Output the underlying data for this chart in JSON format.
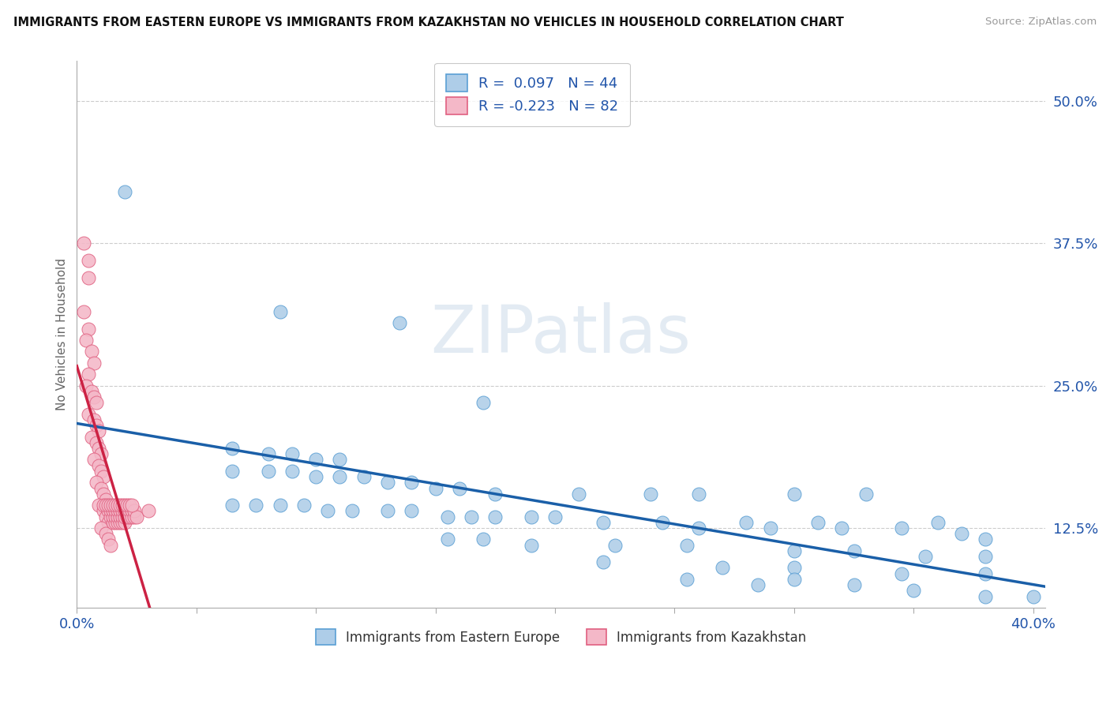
{
  "title": "IMMIGRANTS FROM EASTERN EUROPE VS IMMIGRANTS FROM KAZAKHSTAN NO VEHICLES IN HOUSEHOLD CORRELATION CHART",
  "source": "Source: ZipAtlas.com",
  "ylabel": "No Vehicles in Household",
  "ytick_vals": [
    0.125,
    0.25,
    0.375,
    0.5
  ],
  "ytick_labels": [
    "12.5%",
    "25.0%",
    "37.5%",
    "50.0%"
  ],
  "xlim": [
    0.0,
    0.405
  ],
  "ylim": [
    0.055,
    0.535
  ],
  "blue_color": "#aecde8",
  "pink_color": "#f4b8c8",
  "blue_edge_color": "#5a9fd4",
  "pink_edge_color": "#e06080",
  "blue_line_color": "#1a5fa8",
  "pink_line_color": "#cc2244",
  "blue_scatter": [
    [
      0.02,
      0.42
    ],
    [
      0.085,
      0.315
    ],
    [
      0.135,
      0.305
    ],
    [
      0.17,
      0.235
    ],
    [
      0.065,
      0.195
    ],
    [
      0.08,
      0.19
    ],
    [
      0.09,
      0.19
    ],
    [
      0.1,
      0.185
    ],
    [
      0.11,
      0.185
    ],
    [
      0.065,
      0.175
    ],
    [
      0.08,
      0.175
    ],
    [
      0.09,
      0.175
    ],
    [
      0.1,
      0.17
    ],
    [
      0.11,
      0.17
    ],
    [
      0.12,
      0.17
    ],
    [
      0.13,
      0.165
    ],
    [
      0.14,
      0.165
    ],
    [
      0.15,
      0.16
    ],
    [
      0.16,
      0.16
    ],
    [
      0.175,
      0.155
    ],
    [
      0.21,
      0.155
    ],
    [
      0.24,
      0.155
    ],
    [
      0.26,
      0.155
    ],
    [
      0.3,
      0.155
    ],
    [
      0.33,
      0.155
    ],
    [
      0.065,
      0.145
    ],
    [
      0.075,
      0.145
    ],
    [
      0.085,
      0.145
    ],
    [
      0.095,
      0.145
    ],
    [
      0.105,
      0.14
    ],
    [
      0.115,
      0.14
    ],
    [
      0.13,
      0.14
    ],
    [
      0.14,
      0.14
    ],
    [
      0.155,
      0.135
    ],
    [
      0.165,
      0.135
    ],
    [
      0.175,
      0.135
    ],
    [
      0.19,
      0.135
    ],
    [
      0.2,
      0.135
    ],
    [
      0.22,
      0.13
    ],
    [
      0.245,
      0.13
    ],
    [
      0.28,
      0.13
    ],
    [
      0.31,
      0.13
    ],
    [
      0.36,
      0.13
    ],
    [
      0.26,
      0.125
    ],
    [
      0.29,
      0.125
    ],
    [
      0.32,
      0.125
    ],
    [
      0.345,
      0.125
    ],
    [
      0.37,
      0.12
    ],
    [
      0.38,
      0.115
    ],
    [
      0.155,
      0.115
    ],
    [
      0.17,
      0.115
    ],
    [
      0.19,
      0.11
    ],
    [
      0.225,
      0.11
    ],
    [
      0.255,
      0.11
    ],
    [
      0.3,
      0.105
    ],
    [
      0.325,
      0.105
    ],
    [
      0.355,
      0.1
    ],
    [
      0.38,
      0.1
    ],
    [
      0.22,
      0.095
    ],
    [
      0.27,
      0.09
    ],
    [
      0.3,
      0.09
    ],
    [
      0.345,
      0.085
    ],
    [
      0.38,
      0.085
    ],
    [
      0.255,
      0.08
    ],
    [
      0.3,
      0.08
    ],
    [
      0.285,
      0.075
    ],
    [
      0.325,
      0.075
    ],
    [
      0.35,
      0.07
    ],
    [
      0.38,
      0.065
    ],
    [
      0.4,
      0.065
    ]
  ],
  "pink_scatter": [
    [
      0.003,
      0.375
    ],
    [
      0.005,
      0.36
    ],
    [
      0.005,
      0.345
    ],
    [
      0.003,
      0.315
    ],
    [
      0.005,
      0.3
    ],
    [
      0.004,
      0.29
    ],
    [
      0.006,
      0.28
    ],
    [
      0.007,
      0.27
    ],
    [
      0.005,
      0.26
    ],
    [
      0.004,
      0.25
    ],
    [
      0.006,
      0.245
    ],
    [
      0.007,
      0.24
    ],
    [
      0.008,
      0.235
    ],
    [
      0.005,
      0.225
    ],
    [
      0.007,
      0.22
    ],
    [
      0.008,
      0.215
    ],
    [
      0.009,
      0.21
    ],
    [
      0.006,
      0.205
    ],
    [
      0.008,
      0.2
    ],
    [
      0.009,
      0.195
    ],
    [
      0.01,
      0.19
    ],
    [
      0.007,
      0.185
    ],
    [
      0.009,
      0.18
    ],
    [
      0.01,
      0.175
    ],
    [
      0.011,
      0.17
    ],
    [
      0.008,
      0.165
    ],
    [
      0.01,
      0.16
    ],
    [
      0.011,
      0.155
    ],
    [
      0.012,
      0.15
    ],
    [
      0.009,
      0.145
    ],
    [
      0.011,
      0.14
    ],
    [
      0.012,
      0.135
    ],
    [
      0.013,
      0.13
    ],
    [
      0.01,
      0.125
    ],
    [
      0.012,
      0.12
    ],
    [
      0.013,
      0.115
    ],
    [
      0.014,
      0.11
    ],
    [
      0.011,
      0.145
    ],
    [
      0.013,
      0.14
    ],
    [
      0.014,
      0.135
    ],
    [
      0.015,
      0.13
    ],
    [
      0.012,
      0.145
    ],
    [
      0.014,
      0.14
    ],
    [
      0.015,
      0.135
    ],
    [
      0.016,
      0.13
    ],
    [
      0.013,
      0.145
    ],
    [
      0.015,
      0.14
    ],
    [
      0.016,
      0.135
    ],
    [
      0.017,
      0.13
    ],
    [
      0.014,
      0.145
    ],
    [
      0.016,
      0.14
    ],
    [
      0.017,
      0.135
    ],
    [
      0.018,
      0.13
    ],
    [
      0.015,
      0.145
    ],
    [
      0.017,
      0.14
    ],
    [
      0.018,
      0.135
    ],
    [
      0.019,
      0.13
    ],
    [
      0.016,
      0.145
    ],
    [
      0.018,
      0.14
    ],
    [
      0.019,
      0.135
    ],
    [
      0.02,
      0.13
    ],
    [
      0.017,
      0.145
    ],
    [
      0.019,
      0.14
    ],
    [
      0.02,
      0.135
    ],
    [
      0.018,
      0.145
    ],
    [
      0.02,
      0.14
    ],
    [
      0.021,
      0.135
    ],
    [
      0.019,
      0.145
    ],
    [
      0.021,
      0.14
    ],
    [
      0.022,
      0.135
    ],
    [
      0.02,
      0.145
    ],
    [
      0.022,
      0.14
    ],
    [
      0.023,
      0.135
    ],
    [
      0.021,
      0.145
    ],
    [
      0.023,
      0.14
    ],
    [
      0.024,
      0.135
    ],
    [
      0.022,
      0.145
    ],
    [
      0.024,
      0.14
    ],
    [
      0.025,
      0.135
    ],
    [
      0.023,
      0.145
    ],
    [
      0.03,
      0.14
    ]
  ],
  "watermark": "ZIPatlas",
  "background_color": "#ffffff"
}
